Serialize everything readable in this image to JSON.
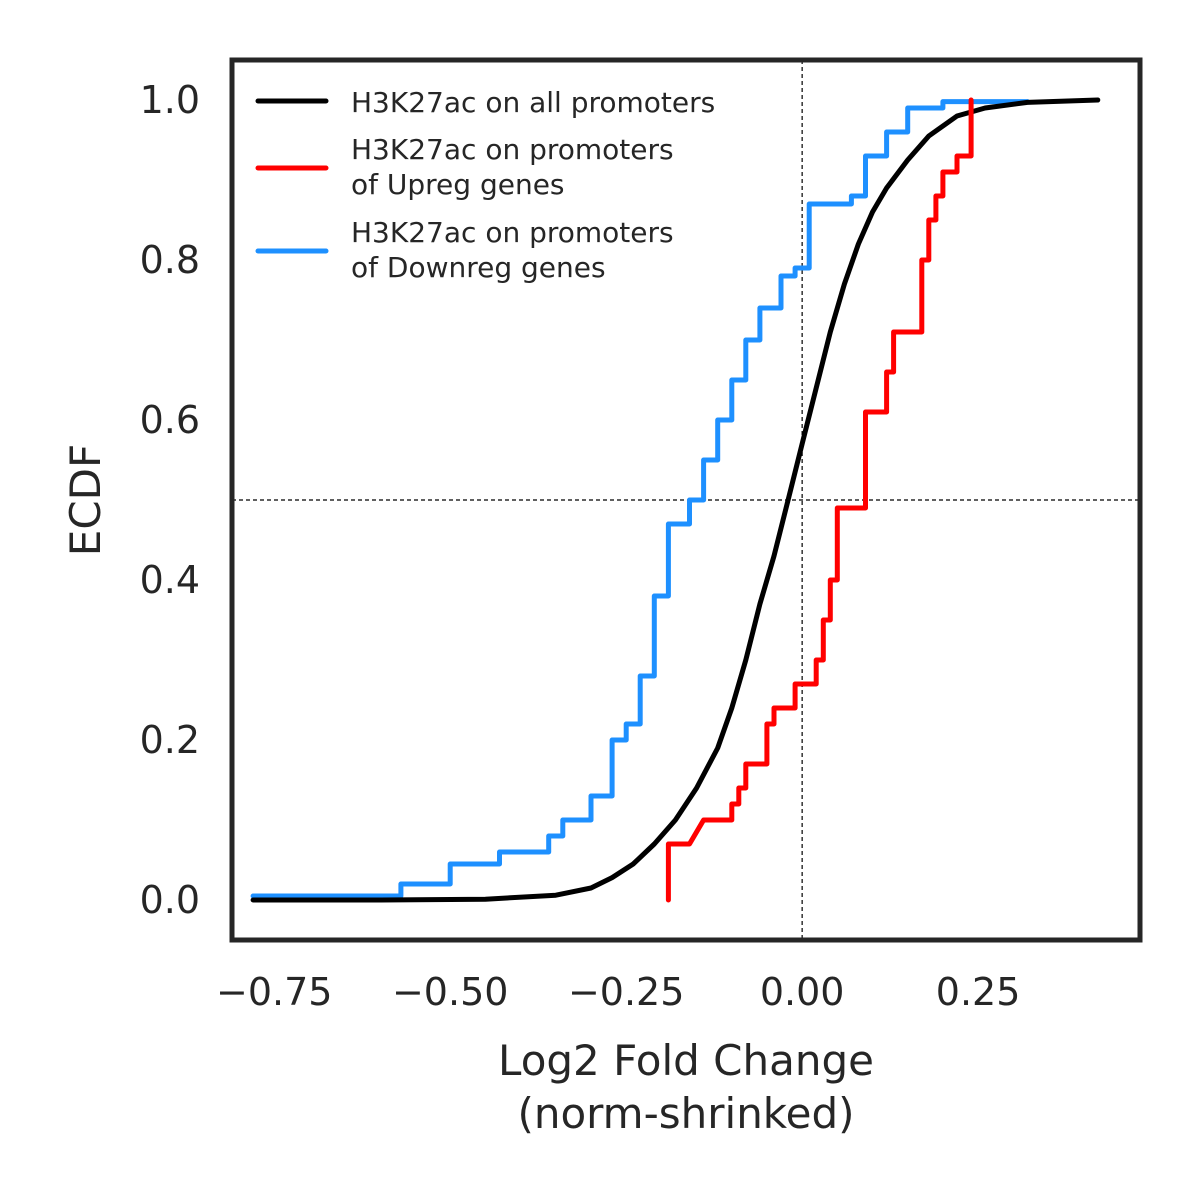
{
  "chart_data": {
    "type": "line",
    "xlabel": [
      "Log2 Fold Change",
      "(norm-shrinked)"
    ],
    "ylabel": "ECDF",
    "xlim": [
      -0.81,
      0.48
    ],
    "ylim": [
      -0.05,
      1.05
    ],
    "xticks": [
      -0.75,
      -0.5,
      -0.25,
      0.0,
      0.25
    ],
    "xtick_labels": [
      "−0.75",
      "−0.50",
      "−0.25",
      "0.00",
      "0.25"
    ],
    "yticks": [
      0.0,
      0.2,
      0.4,
      0.6,
      0.8,
      1.0
    ],
    "ytick_labels": [
      "0.0",
      "0.2",
      "0.4",
      "0.6",
      "0.8",
      "1.0"
    ],
    "reference_lines": {
      "x": 0.0,
      "y": 0.5
    },
    "grid": false,
    "legend_position": "top-left",
    "series": [
      {
        "name": "H3K27ac on all promoters",
        "color": "#000000",
        "step": false,
        "x": [
          -0.78,
          -0.6,
          -0.45,
          -0.35,
          -0.3,
          -0.27,
          -0.24,
          -0.21,
          -0.18,
          -0.15,
          -0.12,
          -0.1,
          -0.08,
          -0.06,
          -0.04,
          -0.02,
          0.0,
          0.02,
          0.04,
          0.06,
          0.08,
          0.1,
          0.12,
          0.15,
          0.18,
          0.22,
          0.26,
          0.32,
          0.42
        ],
        "y": [
          0.0,
          0.0,
          0.001,
          0.006,
          0.015,
          0.028,
          0.045,
          0.07,
          0.1,
          0.14,
          0.19,
          0.24,
          0.3,
          0.37,
          0.43,
          0.5,
          0.57,
          0.64,
          0.71,
          0.77,
          0.82,
          0.86,
          0.89,
          0.925,
          0.955,
          0.98,
          0.99,
          0.997,
          1.0
        ]
      },
      {
        "name": "H3K27ac on promoters\nof Upreg genes",
        "color": "#ff0000",
        "step": true,
        "x": [
          -0.19,
          -0.19,
          -0.16,
          -0.14,
          -0.1,
          -0.1,
          -0.09,
          -0.09,
          -0.08,
          -0.08,
          -0.05,
          -0.05,
          -0.04,
          -0.04,
          -0.01,
          -0.01,
          0.02,
          0.02,
          0.03,
          0.03,
          0.04,
          0.04,
          0.05,
          0.05,
          0.06,
          0.06,
          0.09,
          0.09,
          0.12,
          0.12,
          0.13,
          0.13,
          0.14,
          0.14,
          0.17,
          0.17,
          0.18,
          0.18,
          0.19,
          0.19,
          0.2,
          0.2,
          0.22,
          0.22,
          0.24,
          0.24
        ],
        "y": [
          0.0,
          0.07,
          0.07,
          0.1,
          0.1,
          0.12,
          0.12,
          0.14,
          0.14,
          0.17,
          0.17,
          0.22,
          0.22,
          0.24,
          0.24,
          0.27,
          0.27,
          0.3,
          0.3,
          0.35,
          0.35,
          0.4,
          0.4,
          0.49,
          0.49,
          0.49,
          0.49,
          0.61,
          0.61,
          0.66,
          0.66,
          0.71,
          0.71,
          0.71,
          0.71,
          0.8,
          0.8,
          0.85,
          0.85,
          0.88,
          0.88,
          0.91,
          0.91,
          0.93,
          0.93,
          1.0
        ]
      },
      {
        "name": "H3K27ac on promoters\nof Downreg genes",
        "color": "#1e90ff",
        "step": true,
        "x": [
          -0.78,
          -0.57,
          -0.57,
          -0.5,
          -0.5,
          -0.43,
          -0.43,
          -0.36,
          -0.36,
          -0.34,
          -0.34,
          -0.3,
          -0.3,
          -0.27,
          -0.27,
          -0.25,
          -0.25,
          -0.23,
          -0.23,
          -0.21,
          -0.21,
          -0.19,
          -0.19,
          -0.16,
          -0.16,
          -0.14,
          -0.14,
          -0.12,
          -0.12,
          -0.1,
          -0.1,
          -0.08,
          -0.08,
          -0.06,
          -0.06,
          -0.03,
          -0.03,
          -0.01,
          -0.01,
          0.01,
          0.01,
          0.07,
          0.07,
          0.09,
          0.09,
          0.12,
          0.12,
          0.15,
          0.15,
          0.2,
          0.2,
          0.32
        ],
        "y": [
          0.005,
          0.005,
          0.02,
          0.02,
          0.045,
          0.045,
          0.06,
          0.06,
          0.08,
          0.08,
          0.1,
          0.1,
          0.13,
          0.13,
          0.2,
          0.2,
          0.22,
          0.22,
          0.28,
          0.28,
          0.38,
          0.38,
          0.47,
          0.47,
          0.5,
          0.5,
          0.55,
          0.55,
          0.6,
          0.6,
          0.65,
          0.65,
          0.7,
          0.7,
          0.74,
          0.74,
          0.78,
          0.78,
          0.79,
          0.79,
          0.87,
          0.87,
          0.88,
          0.88,
          0.93,
          0.93,
          0.96,
          0.96,
          0.99,
          0.99,
          0.998,
          0.998
        ]
      }
    ]
  }
}
